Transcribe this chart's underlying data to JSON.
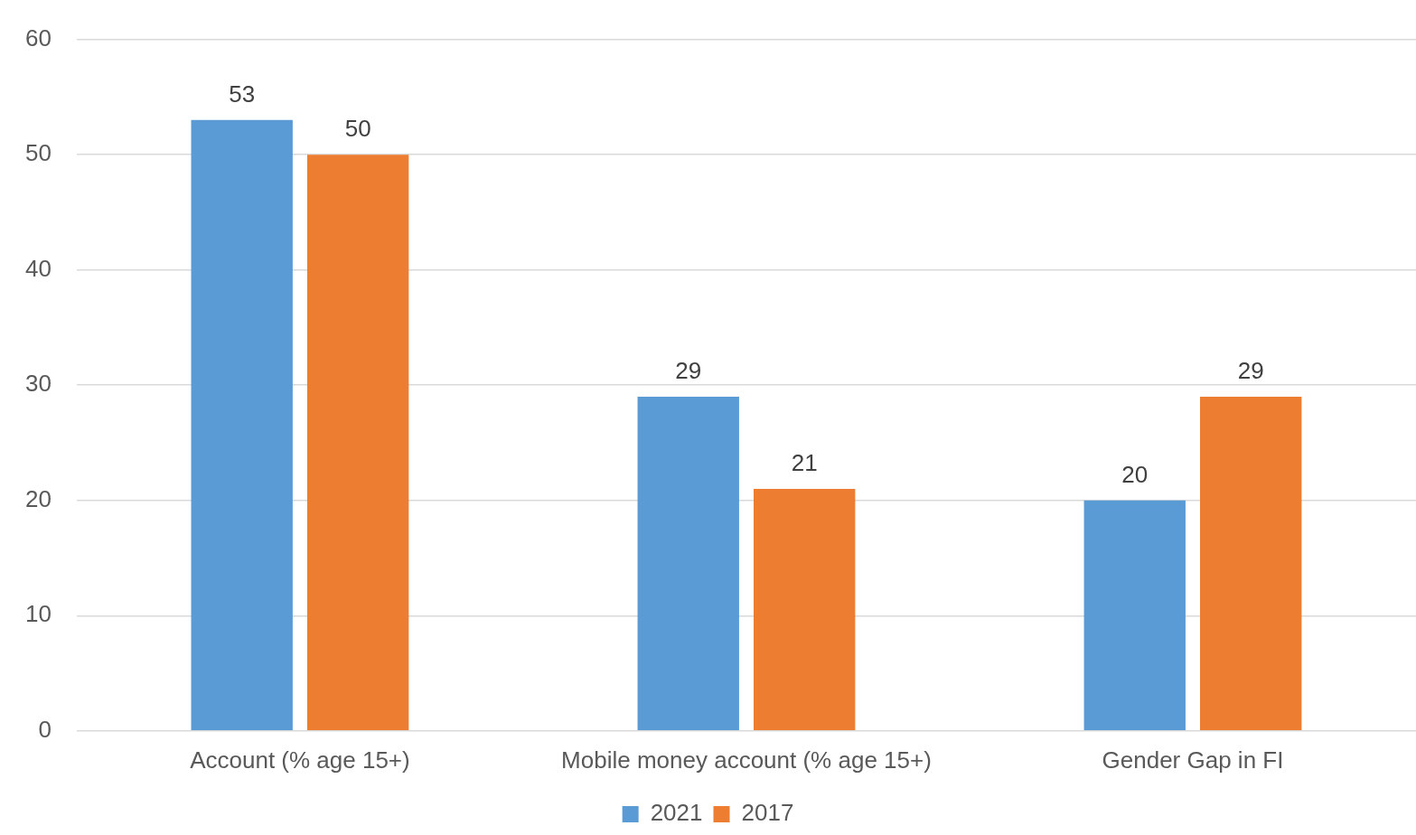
{
  "chart_data": {
    "type": "bar",
    "categories": [
      "Account (% age 15+)",
      "Mobile money account (% age 15+)",
      "Gender Gap in FI"
    ],
    "series": [
      {
        "name": "2021",
        "color": "#5b9bd5",
        "values": [
          53,
          29,
          20
        ]
      },
      {
        "name": "2017",
        "color": "#ed7d31",
        "values": [
          50,
          21,
          29
        ]
      }
    ],
    "ylim": [
      0,
      60
    ],
    "yticks": [
      0,
      10,
      20,
      30,
      40,
      50,
      60
    ],
    "grid": "y",
    "legend": "bottom",
    "data_labels": true
  }
}
